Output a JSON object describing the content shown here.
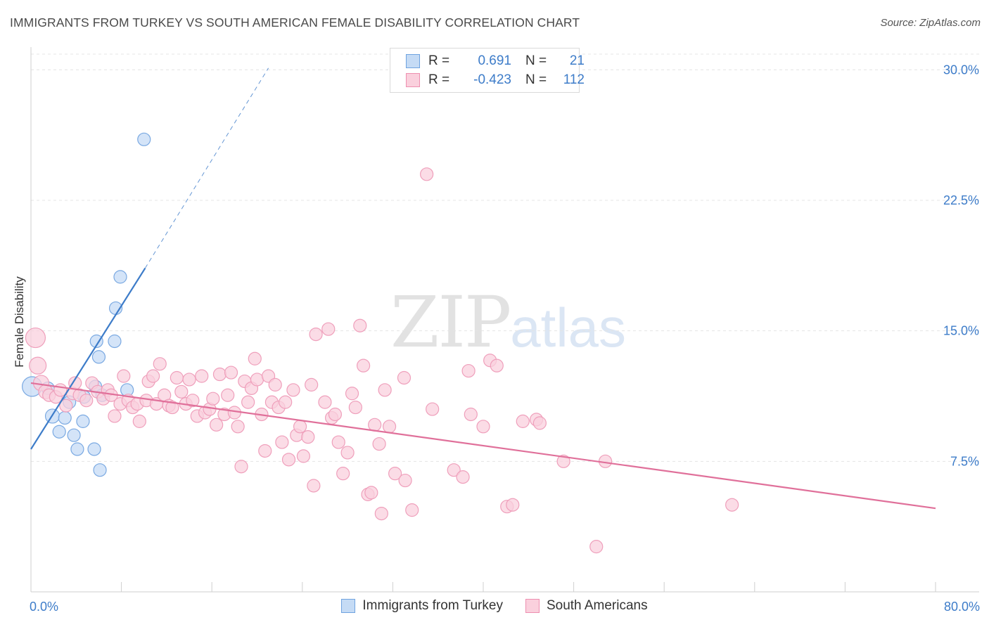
{
  "title": "IMMIGRANTS FROM TURKEY VS SOUTH AMERICAN FEMALE DISABILITY CORRELATION CHART",
  "source": "Source: ZipAtlas.com",
  "watermark": {
    "zip": "ZIP",
    "atlas": "atlas"
  },
  "legend": {
    "rows": [
      {
        "r_label": "R =",
        "r_value": "0.691",
        "n_label": "N =",
        "n_value": "21",
        "color": "#6fa3e0",
        "fill": "#c5dbf5"
      },
      {
        "r_label": "R =",
        "r_value": "-0.423",
        "n_label": "N =",
        "n_value": "112",
        "color": "#ee8fb0",
        "fill": "#fad0dd"
      }
    ]
  },
  "chart_data": {
    "type": "scatter",
    "title": "IMMIGRANTS FROM TURKEY VS SOUTH AMERICAN FEMALE DISABILITY CORRELATION CHART",
    "xlabel": "",
    "ylabel": "Female Disability",
    "xlim": [
      0,
      80
    ],
    "ylim": [
      0,
      30.9
    ],
    "x_ticks": [
      0,
      8,
      16,
      24,
      32,
      40,
      48,
      56,
      64,
      72,
      80
    ],
    "x_tick_labels": [
      "0.0%",
      "80.0%"
    ],
    "y_ticks": [
      7.5,
      15.0,
      22.5,
      30.0
    ],
    "y_tick_labels": [
      "7.5%",
      "15.0%",
      "22.5%",
      "30.0%"
    ],
    "grid": "horizontal dashed",
    "series": [
      {
        "name": "Immigrants from Turkey",
        "color": "#3d7cc9",
        "point_fill": "#c5dbf5",
        "point_stroke": "#7aa9e2",
        "trend": {
          "x0": 0,
          "y0": 8.2,
          "x1": 10.1,
          "y1": 18.6,
          "dash_to_x": 21,
          "dash_to_y": 30.1
        },
        "points": [
          [
            0.1,
            11.8,
            14
          ],
          [
            1.9,
            10.1,
            10
          ],
          [
            3.0,
            10.0,
            9
          ],
          [
            4.6,
            9.8,
            9
          ],
          [
            3.4,
            10.9,
            9
          ],
          [
            3.8,
            9.0,
            9
          ],
          [
            2.5,
            9.2,
            9
          ],
          [
            4.1,
            8.2,
            9
          ],
          [
            5.7,
            11.8,
            9
          ],
          [
            6.3,
            11.3,
            9
          ],
          [
            4.7,
            11.2,
            9
          ],
          [
            8.5,
            11.6,
            9
          ],
          [
            6.0,
            13.5,
            9
          ],
          [
            5.8,
            14.4,
            9
          ],
          [
            7.4,
            14.4,
            9
          ],
          [
            7.5,
            16.3,
            9
          ],
          [
            7.9,
            18.1,
            9
          ],
          [
            10.0,
            26.0,
            9
          ],
          [
            5.6,
            8.2,
            9
          ],
          [
            6.1,
            7.0,
            9
          ],
          [
            1.5,
            11.7,
            9
          ]
        ]
      },
      {
        "name": "South Americans",
        "color": "#e0709a",
        "point_fill": "#fad0dd",
        "point_stroke": "#ef9fbb",
        "trend": {
          "x0": 0,
          "y0": 12.0,
          "x1": 80,
          "y1": 4.8
        },
        "points": [
          [
            0.4,
            14.6,
            14
          ],
          [
            0.6,
            13.0,
            12
          ],
          [
            0.9,
            12.0,
            11
          ],
          [
            1.3,
            11.5,
            10
          ],
          [
            1.6,
            11.3,
            9
          ],
          [
            2.2,
            11.2,
            9
          ],
          [
            2.6,
            11.6,
            9
          ],
          [
            3.1,
            10.7,
            9
          ],
          [
            3.7,
            11.4,
            9
          ],
          [
            4.3,
            11.3,
            9
          ],
          [
            4.9,
            11.0,
            9
          ],
          [
            5.4,
            12.0,
            9
          ],
          [
            5.9,
            11.5,
            9
          ],
          [
            6.4,
            11.1,
            9
          ],
          [
            6.8,
            11.6,
            9
          ],
          [
            7.1,
            11.3,
            9
          ],
          [
            7.4,
            10.1,
            9
          ],
          [
            7.9,
            10.8,
            9
          ],
          [
            8.2,
            12.4,
            9
          ],
          [
            8.6,
            11.0,
            9
          ],
          [
            9.0,
            10.6,
            9
          ],
          [
            9.4,
            10.8,
            9
          ],
          [
            9.6,
            9.8,
            9
          ],
          [
            10.2,
            11.0,
            9
          ],
          [
            10.4,
            12.1,
            9
          ],
          [
            10.8,
            12.4,
            9
          ],
          [
            11.1,
            10.8,
            9
          ],
          [
            11.4,
            13.1,
            9
          ],
          [
            11.8,
            11.3,
            9
          ],
          [
            12.2,
            10.7,
            9
          ],
          [
            12.5,
            10.6,
            9
          ],
          [
            12.9,
            12.3,
            9
          ],
          [
            13.3,
            11.5,
            9
          ],
          [
            13.7,
            10.8,
            9
          ],
          [
            14.0,
            12.2,
            9
          ],
          [
            14.3,
            11.0,
            9
          ],
          [
            14.7,
            10.1,
            9
          ],
          [
            15.1,
            12.4,
            9
          ],
          [
            15.4,
            10.3,
            9
          ],
          [
            15.8,
            10.5,
            9
          ],
          [
            16.1,
            11.1,
            9
          ],
          [
            16.4,
            9.6,
            9
          ],
          [
            16.7,
            12.5,
            9
          ],
          [
            17.1,
            10.2,
            9
          ],
          [
            17.4,
            11.3,
            9
          ],
          [
            17.7,
            12.6,
            9
          ],
          [
            18.0,
            10.3,
            9
          ],
          [
            18.3,
            9.5,
            9
          ],
          [
            18.6,
            7.2,
            9
          ],
          [
            18.9,
            12.1,
            9
          ],
          [
            19.2,
            10.9,
            9
          ],
          [
            19.5,
            11.7,
            9
          ],
          [
            19.8,
            13.4,
            9
          ],
          [
            20.0,
            12.2,
            9
          ],
          [
            20.4,
            10.2,
            9
          ],
          [
            20.7,
            8.1,
            9
          ],
          [
            21.0,
            12.4,
            9
          ],
          [
            21.3,
            10.9,
            9
          ],
          [
            21.6,
            11.9,
            9
          ],
          [
            21.9,
            10.6,
            9
          ],
          [
            22.2,
            8.6,
            9
          ],
          [
            22.5,
            10.9,
            9
          ],
          [
            22.8,
            7.6,
            9
          ],
          [
            23.2,
            11.6,
            9
          ],
          [
            23.5,
            9.0,
            9
          ],
          [
            23.8,
            9.5,
            9
          ],
          [
            24.1,
            7.8,
            9
          ],
          [
            24.5,
            8.9,
            9
          ],
          [
            24.8,
            11.9,
            9
          ],
          [
            25.0,
            6.1,
            9
          ],
          [
            25.2,
            14.8,
            9
          ],
          [
            26.0,
            10.9,
            9
          ],
          [
            26.3,
            15.1,
            9
          ],
          [
            26.6,
            10.0,
            9
          ],
          [
            26.9,
            10.2,
            9
          ],
          [
            27.2,
            8.6,
            9
          ],
          [
            27.6,
            6.8,
            9
          ],
          [
            28.0,
            8.0,
            9
          ],
          [
            28.4,
            11.4,
            9
          ],
          [
            28.7,
            10.6,
            9
          ],
          [
            29.1,
            15.3,
            9
          ],
          [
            29.4,
            13.0,
            9
          ],
          [
            29.8,
            5.6,
            9
          ],
          [
            30.1,
            5.7,
            9
          ],
          [
            30.4,
            9.6,
            9
          ],
          [
            30.8,
            8.5,
            9
          ],
          [
            31.0,
            4.5,
            9
          ],
          [
            31.3,
            11.6,
            9
          ],
          [
            31.7,
            9.5,
            9
          ],
          [
            32.2,
            6.8,
            9
          ],
          [
            33.1,
            6.4,
            9
          ],
          [
            33.7,
            4.7,
            9
          ],
          [
            35.0,
            24.0,
            9
          ],
          [
            35.5,
            10.5,
            9
          ],
          [
            37.4,
            7.0,
            9
          ],
          [
            38.2,
            6.6,
            9
          ],
          [
            38.9,
            10.2,
            9
          ],
          [
            38.7,
            12.7,
            9
          ],
          [
            40.6,
            13.3,
            9
          ],
          [
            41.2,
            13.0,
            9
          ],
          [
            40.0,
            9.5,
            9
          ],
          [
            42.1,
            4.9,
            9
          ],
          [
            42.6,
            5.0,
            9
          ],
          [
            43.5,
            9.8,
            9
          ],
          [
            44.7,
            9.9,
            9
          ],
          [
            47.1,
            7.5,
            9
          ],
          [
            50.8,
            7.5,
            9
          ],
          [
            62.0,
            5.0,
            9
          ],
          [
            50.0,
            2.6,
            9
          ],
          [
            45.0,
            9.7,
            9
          ],
          [
            33.0,
            12.3,
            9
          ],
          [
            3.9,
            12.0,
            9
          ]
        ]
      }
    ]
  },
  "bottom_legend": [
    {
      "label": "Immigrants from Turkey",
      "color": "#6fa3e0",
      "fill": "#c5dbf5"
    },
    {
      "label": "South Americans",
      "color": "#ee8fb0",
      "fill": "#fad0dd"
    }
  ]
}
